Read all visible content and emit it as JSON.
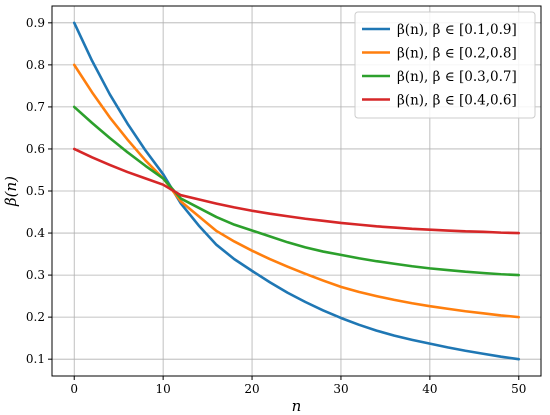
{
  "chart_data": {
    "type": "line",
    "title": "",
    "xlabel": "n",
    "ylabel": "β(n)",
    "xlim": [
      -2.5,
      52.5
    ],
    "ylim": [
      0.06,
      0.94
    ],
    "xticks": [
      0,
      10,
      20,
      30,
      40,
      50
    ],
    "yticks": [
      0.1,
      0.2,
      0.3,
      0.4,
      0.5,
      0.6,
      0.7,
      0.8,
      0.9
    ],
    "grid": true,
    "legend_position": "top-right",
    "x": [
      0,
      2,
      4,
      6,
      8,
      10,
      12,
      14,
      16,
      18,
      20,
      22,
      24,
      26,
      28,
      30,
      32,
      34,
      36,
      38,
      40,
      42,
      44,
      46,
      48,
      50
    ],
    "series": [
      {
        "name": "β(n), β ∈ [0.1,0.9]",
        "color": "#1f77b4",
        "values": [
          0.9,
          0.81,
          0.73,
          0.66,
          0.597,
          0.54,
          0.47,
          0.418,
          0.372,
          0.338,
          0.31,
          0.283,
          0.258,
          0.236,
          0.216,
          0.198,
          0.182,
          0.168,
          0.156,
          0.146,
          0.137,
          0.128,
          0.12,
          0.113,
          0.106,
          0.1
        ]
      },
      {
        "name": "β(n), β ∈ [0.2,0.8]",
        "color": "#ff7f0e",
        "values": [
          0.8,
          0.735,
          0.675,
          0.622,
          0.573,
          0.53,
          0.475,
          0.44,
          0.405,
          0.38,
          0.358,
          0.338,
          0.32,
          0.303,
          0.287,
          0.272,
          0.26,
          0.25,
          0.241,
          0.233,
          0.226,
          0.22,
          0.214,
          0.209,
          0.204,
          0.2
        ]
      },
      {
        "name": "β(n), β ∈ [0.3,0.7]",
        "color": "#2ca02c",
        "values": [
          0.7,
          0.662,
          0.626,
          0.592,
          0.56,
          0.53,
          0.482,
          0.46,
          0.438,
          0.42,
          0.406,
          0.392,
          0.378,
          0.366,
          0.356,
          0.348,
          0.34,
          0.333,
          0.327,
          0.321,
          0.316,
          0.312,
          0.308,
          0.305,
          0.302,
          0.3
        ]
      },
      {
        "name": "β(n), β ∈ [0.4,0.6]",
        "color": "#d62728",
        "values": [
          0.6,
          0.58,
          0.562,
          0.545,
          0.53,
          0.515,
          0.49,
          0.48,
          0.47,
          0.461,
          0.453,
          0.446,
          0.44,
          0.434,
          0.429,
          0.424,
          0.42,
          0.416,
          0.413,
          0.41,
          0.408,
          0.406,
          0.404,
          0.403,
          0.401,
          0.4
        ]
      }
    ]
  }
}
